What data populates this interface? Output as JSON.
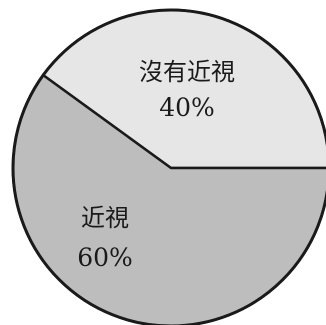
{
  "chart_data": {
    "type": "pie",
    "title": "",
    "slices": [
      {
        "label": "沒有近視",
        "value_text": "40%",
        "value": 40,
        "color": "#e6e6e6"
      },
      {
        "label": "近視",
        "value_text": "60%",
        "value": 60,
        "color": "#bdbdbd"
      }
    ],
    "start_angle_deg": 0,
    "direction": "counterclockwise",
    "outline_color": "#1a1a1a",
    "legend": "none"
  }
}
